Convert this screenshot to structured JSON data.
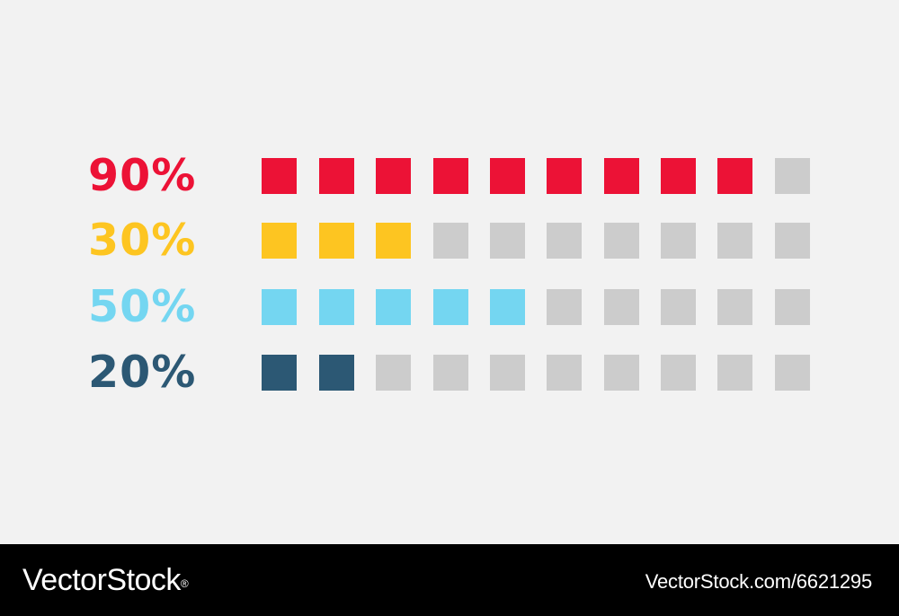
{
  "chart_data": {
    "type": "bar",
    "total_units": 10,
    "inactive_color": "#cccccc",
    "rows": [
      {
        "label": "90%",
        "value": 90,
        "filled_units": 9,
        "color": "#ec1236"
      },
      {
        "label": "30%",
        "value": 30,
        "filled_units": 3,
        "color": "#fdc521"
      },
      {
        "label": "50%",
        "value": 50,
        "filled_units": 5,
        "color": "#74d6f1"
      },
      {
        "label": "20%",
        "value": 20,
        "filled_units": 2,
        "color": "#2c5874"
      }
    ]
  },
  "watermark": {
    "brand": "VectorStock",
    "brand_mark": "®",
    "image_url": "VectorStock.com/6621295"
  }
}
